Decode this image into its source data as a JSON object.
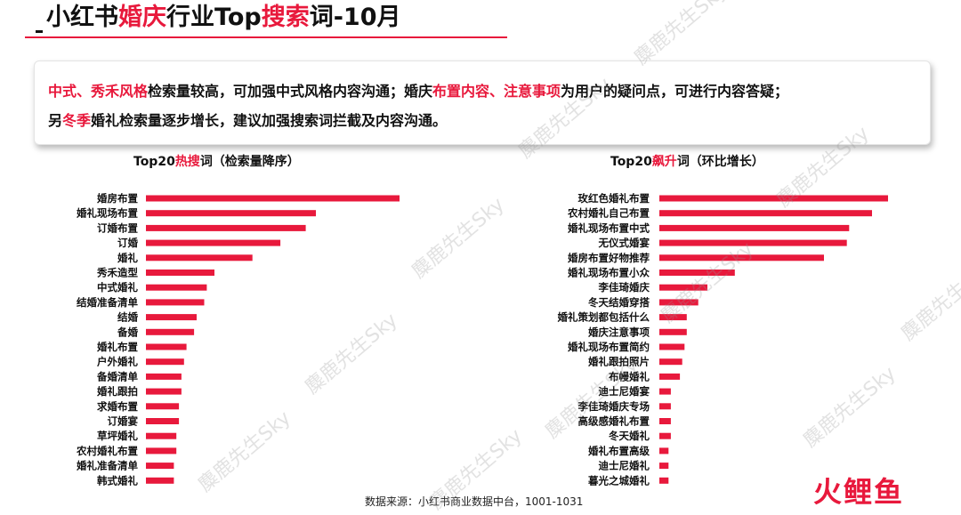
{
  "title": {
    "part1": "小红书",
    "part2": "婚庆",
    "part3": "行业Top",
    "part4": "搜索",
    "part5": "词-10月"
  },
  "summary": {
    "l1_a": "中式、秀禾风格",
    "l1_b": "检索量较高，可加强中式风格内容沟通；婚庆",
    "l1_c": "布置内容、注意事项",
    "l1_d": "为用户的疑问点，可进行内容答疑；",
    "l2_a": "另",
    "l2_b": "冬季",
    "l2_c": "婚礼检索量逐步增长，建议加强搜索词拦截及内容沟通。"
  },
  "left_title": {
    "a": "Top20",
    "b": "热搜",
    "c": "词（检索量降序）"
  },
  "right_title": {
    "a": "Top20",
    "b": "飙升",
    "c": "词（环比增长）"
  },
  "chart_data": [
    {
      "type": "bar",
      "orientation": "horizontal",
      "title": "Top20热搜词（检索量降序）",
      "categories": [
        "婚房布置",
        "婚礼现场布置",
        "订婚布置",
        "订婚",
        "婚礼",
        "秀禾造型",
        "中式婚礼",
        "结婚准备清单",
        "结婚",
        "备婚",
        "婚礼布置",
        "户外婚礼",
        "备婚清单",
        "婚礼跟拍",
        "求婚布置",
        "订婚宴",
        "草坪婚礼",
        "农村婚礼布置",
        "婚礼准备清单",
        "韩式婚礼"
      ],
      "values": [
        100,
        67,
        63,
        53,
        42,
        27,
        24,
        23,
        20,
        19,
        16,
        15,
        14,
        14,
        13,
        13,
        12,
        12,
        11,
        11
      ],
      "value_scale": "relative (longest bar = 100)",
      "color": "#e8193c"
    },
    {
      "type": "bar",
      "orientation": "horizontal",
      "title": "Top20飙升词（环比增长）",
      "categories": [
        "玫红色婚礼布置",
        "农村婚礼自己布置",
        "婚礼现场布置中式",
        "无仪式婚宴",
        "婚房布置好物推荐",
        "婚礼现场布置小众",
        "李佳琦婚庆",
        "冬天结婚穿搭",
        "婚礼策划都包括什么",
        "婚庆注意事项",
        "婚礼现场布置简约",
        "婚礼跟拍照片",
        "布幔婚礼",
        "迪士尼婚宴",
        "李佳琦婚庆专场",
        "高级感婚礼布置",
        "冬天婚礼",
        "婚礼布置高级",
        "迪士尼婚礼",
        "暮光之城婚礼"
      ],
      "values": [
        100,
        93,
        83,
        82,
        72,
        33,
        21,
        17,
        12,
        12,
        11,
        10,
        9,
        5,
        5,
        5,
        5,
        4,
        4,
        4
      ],
      "value_scale": "relative (longest bar = 100)",
      "color": "#e8193c"
    }
  ],
  "source": "数据来源：小红书商业数据中台，1001-1031",
  "watermark": "麋鹿先生Sky",
  "logo": "火鲤鱼"
}
